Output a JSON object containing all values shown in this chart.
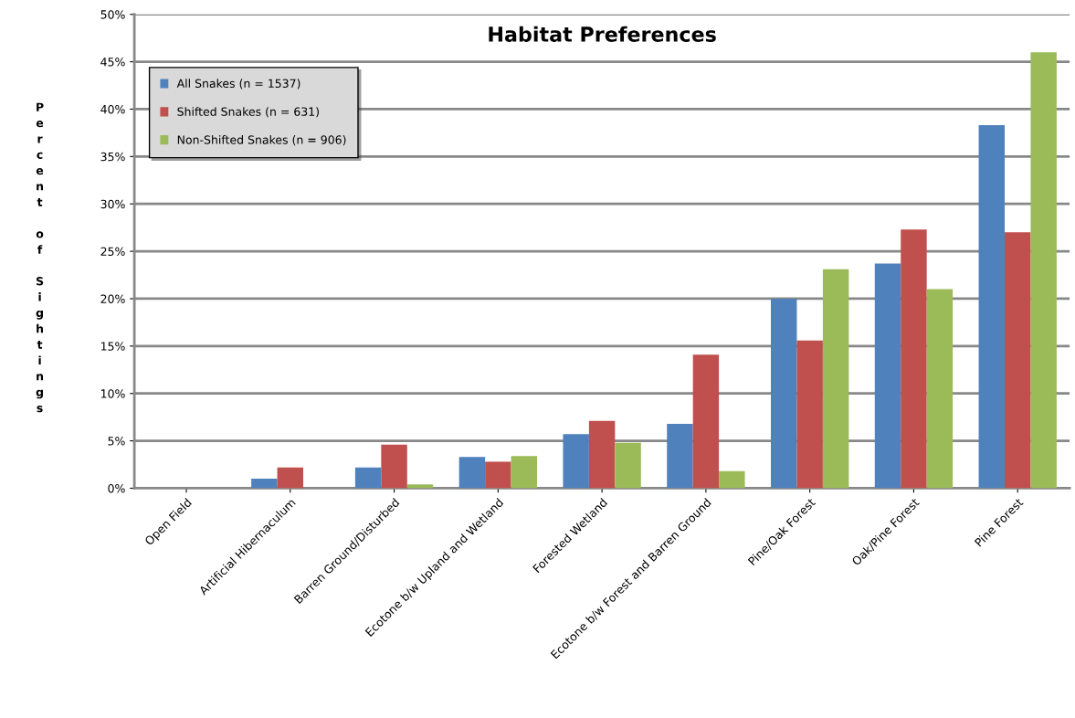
{
  "chart_data": {
    "type": "bar",
    "title": "Habitat Preferences",
    "ylabel": "Percent of Sightings",
    "categories": [
      "Open Field",
      "Artificial Hibernaculum",
      "Barren Ground/Disturbed",
      "Ecotone b/w Upland and Wetland",
      "Forested Wetland",
      "Ecotone b/w Forest and Barren Ground",
      "Pine/Oak Forest",
      "Oak/Pine Forest",
      "Pine Forest"
    ],
    "series": [
      {
        "name": "All Snakes (n = 1537)",
        "color": "#4f81bd",
        "values": [
          0,
          1.0,
          2.2,
          3.3,
          5.7,
          6.8,
          20.0,
          23.7,
          38.3
        ]
      },
      {
        "name": "Shifted Snakes (n = 631)",
        "color": "#c0504d",
        "values": [
          0,
          2.2,
          4.6,
          2.8,
          7.1,
          14.1,
          15.6,
          27.3,
          27.0
        ]
      },
      {
        "name": "Non-Shifted Snakes (n = 906)",
        "color": "#9bbb59",
        "values": [
          0,
          0,
          0.4,
          3.4,
          4.8,
          1.8,
          23.1,
          21.0,
          46.0
        ]
      }
    ],
    "ylim": [
      0,
      50
    ],
    "yticks": [
      {
        "value": 0,
        "label": "0%"
      },
      {
        "value": 5,
        "label": "5%"
      },
      {
        "value": 10,
        "label": "10%"
      },
      {
        "value": 15,
        "label": "15%"
      },
      {
        "value": 20,
        "label": "20%"
      },
      {
        "value": 25,
        "label": "25%"
      },
      {
        "value": 30,
        "label": "30%"
      },
      {
        "value": 35,
        "label": "35%"
      },
      {
        "value": 40,
        "label": "40%"
      },
      {
        "value": 45,
        "label": "45%"
      },
      {
        "value": 50,
        "label": "50%"
      }
    ],
    "grid": "y",
    "legend": "top left"
  }
}
